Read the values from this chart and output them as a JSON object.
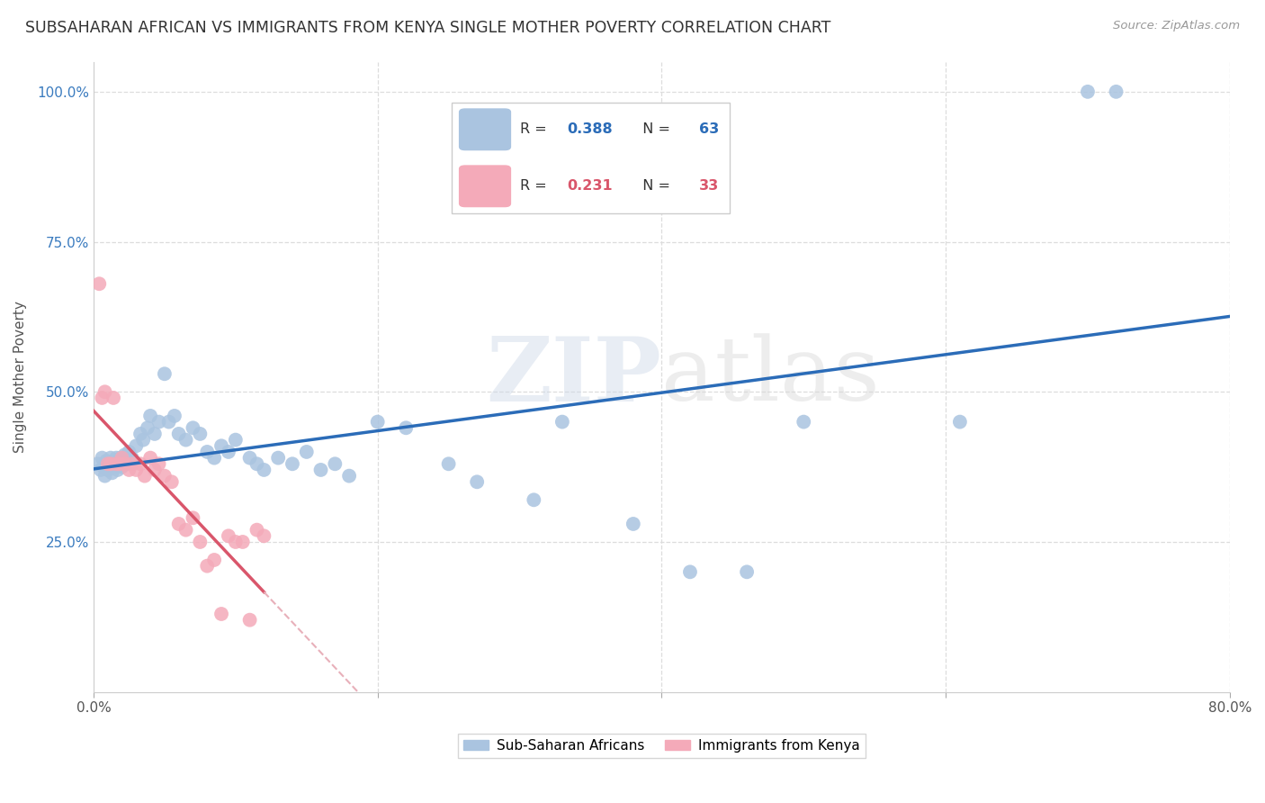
{
  "title": "SUBSAHARAN AFRICAN VS IMMIGRANTS FROM KENYA SINGLE MOTHER POVERTY CORRELATION CHART",
  "source": "Source: ZipAtlas.com",
  "ylabel": "Single Mother Poverty",
  "xlim": [
    0.0,
    0.8
  ],
  "ylim": [
    0.0,
    1.05
  ],
  "grid_color": "#dddddd",
  "background_color": "#ffffff",
  "watermark_zip": "ZIP",
  "watermark_atlas": "atlas",
  "blue_scatter_color": "#aac4e0",
  "pink_scatter_color": "#f4aab9",
  "blue_line_color": "#2b6cb8",
  "pink_line_color": "#d9566b",
  "pink_dashed_color": "#e8b0ba",
  "r_blue": "0.388",
  "n_blue": "63",
  "r_pink": "0.231",
  "n_pink": "33",
  "blue_points_x": [
    0.003,
    0.005,
    0.006,
    0.007,
    0.008,
    0.009,
    0.01,
    0.011,
    0.012,
    0.013,
    0.014,
    0.015,
    0.016,
    0.017,
    0.018,
    0.019,
    0.02,
    0.021,
    0.022,
    0.023,
    0.025,
    0.027,
    0.03,
    0.033,
    0.035,
    0.038,
    0.04,
    0.043,
    0.046,
    0.05,
    0.053,
    0.057,
    0.06,
    0.065,
    0.07,
    0.075,
    0.08,
    0.085,
    0.09,
    0.095,
    0.1,
    0.11,
    0.115,
    0.12,
    0.13,
    0.14,
    0.15,
    0.16,
    0.17,
    0.18,
    0.2,
    0.22,
    0.25,
    0.27,
    0.31,
    0.33,
    0.38,
    0.42,
    0.46,
    0.5,
    0.61,
    0.7,
    0.72
  ],
  "blue_points_y": [
    0.38,
    0.37,
    0.39,
    0.375,
    0.36,
    0.385,
    0.37,
    0.38,
    0.39,
    0.365,
    0.375,
    0.38,
    0.39,
    0.37,
    0.38,
    0.39,
    0.375,
    0.385,
    0.395,
    0.38,
    0.4,
    0.39,
    0.41,
    0.43,
    0.42,
    0.44,
    0.46,
    0.43,
    0.45,
    0.53,
    0.45,
    0.46,
    0.43,
    0.42,
    0.44,
    0.43,
    0.4,
    0.39,
    0.41,
    0.4,
    0.42,
    0.39,
    0.38,
    0.37,
    0.39,
    0.38,
    0.4,
    0.37,
    0.38,
    0.36,
    0.45,
    0.44,
    0.38,
    0.35,
    0.32,
    0.45,
    0.28,
    0.2,
    0.2,
    0.45,
    0.45,
    1.0,
    1.0
  ],
  "pink_points_x": [
    0.004,
    0.006,
    0.008,
    0.01,
    0.012,
    0.014,
    0.016,
    0.018,
    0.02,
    0.022,
    0.025,
    0.027,
    0.03,
    0.033,
    0.036,
    0.04,
    0.043,
    0.046,
    0.05,
    0.055,
    0.06,
    0.065,
    0.07,
    0.075,
    0.08,
    0.085,
    0.09,
    0.095,
    0.1,
    0.105,
    0.11,
    0.115,
    0.12
  ],
  "pink_points_y": [
    0.68,
    0.49,
    0.5,
    0.38,
    0.38,
    0.49,
    0.38,
    0.38,
    0.39,
    0.38,
    0.37,
    0.38,
    0.37,
    0.38,
    0.36,
    0.39,
    0.37,
    0.38,
    0.36,
    0.35,
    0.28,
    0.27,
    0.29,
    0.25,
    0.21,
    0.22,
    0.13,
    0.26,
    0.25,
    0.25,
    0.12,
    0.27,
    0.26
  ],
  "legend_label_blue": "Sub-Saharan Africans",
  "legend_label_pink": "Immigrants from Kenya"
}
